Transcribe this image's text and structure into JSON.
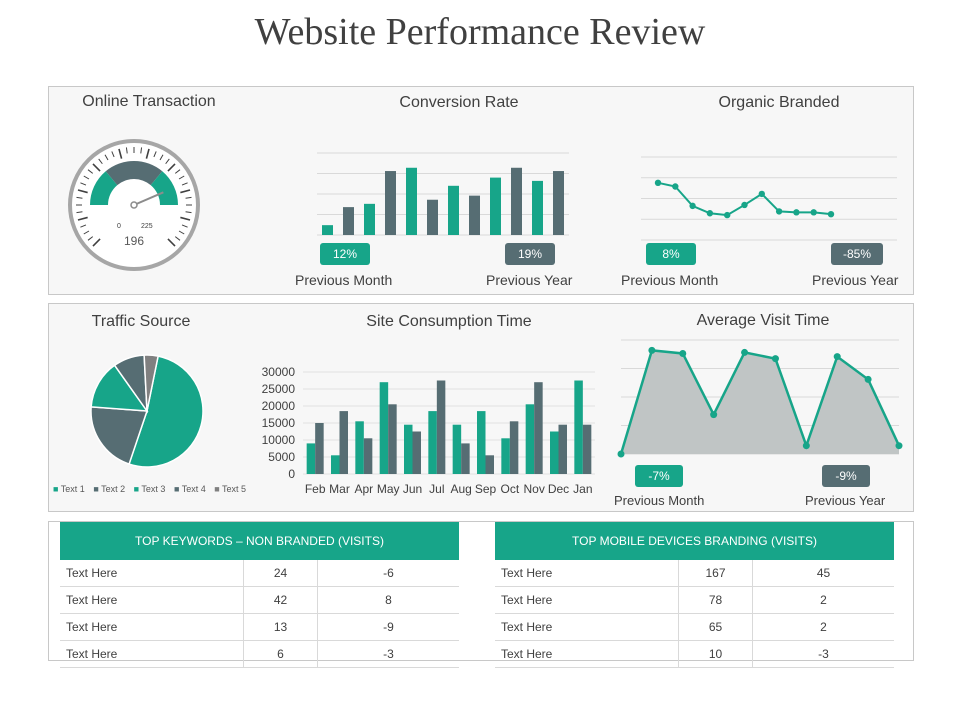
{
  "title": "Website Performance Review",
  "colors": {
    "teal": "#17a589",
    "slate": "#566d73",
    "grey": "#c0c5c5"
  },
  "online_transaction": {
    "title": "Online Transaction",
    "gauge_value": "196",
    "gauge_min": "0",
    "gauge_max": "225",
    "needle_fraction": 0.87
  },
  "conversion_rate": {
    "title": "Conversion Rate",
    "badge_left": "12%",
    "badge_right": "19%",
    "caption_left": "Previous Month",
    "caption_right": "Previous Year"
  },
  "organic_branded": {
    "title": "Organic Branded",
    "badge_left": "8%",
    "badge_right": "-85%",
    "caption_left": "Previous Month",
    "caption_right": "Previous Year"
  },
  "traffic_source": {
    "title": "Traffic Source",
    "legend": [
      "Text 1",
      "Text 2",
      "Text 3",
      "Text 4",
      "Text 5"
    ]
  },
  "site_consumption": {
    "title": "Site Consumption Time"
  },
  "average_visit": {
    "title": "Average Visit Time",
    "badge_left": "-7%",
    "badge_right": "-9%",
    "caption_left": "Previous Month",
    "caption_right": "Previous Year"
  },
  "keywords_table": {
    "header": "TOP KEYWORDS – NON BRANDED (VISITS)",
    "rows": [
      [
        "Text Here",
        "24",
        "-6"
      ],
      [
        "Text Here",
        "42",
        "8"
      ],
      [
        "Text Here",
        "13",
        "-9"
      ],
      [
        "Text Here",
        "6",
        "-3"
      ]
    ]
  },
  "mobile_table": {
    "header": "TOP MOBILE DEVICES BRANDING (VISITS)",
    "rows": [
      [
        "Text Here",
        "167",
        "45"
      ],
      [
        "Text Here",
        "78",
        "2"
      ],
      [
        "Text Here",
        "65",
        "2"
      ],
      [
        "Text Here",
        "10",
        "-3"
      ]
    ]
  },
  "chart_data": [
    {
      "id": "conversion",
      "type": "bar",
      "values": [
        12,
        34,
        38,
        78,
        82,
        43,
        60,
        48,
        70,
        82,
        66,
        78
      ],
      "colors": [
        "#17a589",
        "#566d73",
        "#17a589",
        "#566d73",
        "#17a589",
        "#566d73",
        "#17a589",
        "#566d73",
        "#17a589",
        "#566d73",
        "#17a589",
        "#566d73"
      ],
      "ylim": [
        0,
        100
      ],
      "grid": true
    },
    {
      "id": "organic",
      "type": "line",
      "values": [
        62,
        58,
        37,
        29,
        27,
        38,
        50,
        31,
        30,
        30,
        28
      ],
      "ylim": [
        0,
        90
      ],
      "grid": true
    },
    {
      "id": "traffic",
      "type": "pie",
      "categories": [
        "Text 1",
        "Text 2",
        "Text 3",
        "Text 4",
        "Text 5"
      ],
      "values": [
        52,
        21,
        14,
        9,
        4
      ],
      "colors": [
        "#17a589",
        "#566d73",
        "#17a589",
        "#566d73",
        "#808080"
      ]
    },
    {
      "id": "consumption",
      "type": "bar",
      "categories": [
        "Feb",
        "Mar",
        "Apr",
        "May",
        "Jun",
        "Jul",
        "Aug",
        "Sep",
        "Oct",
        "Nov",
        "Dec",
        "Jan"
      ],
      "series": [
        {
          "color": "#17a589",
          "values": [
            9000,
            5500,
            15500,
            27000,
            14500,
            18500,
            14500,
            18500,
            10500,
            20500,
            12500,
            27500
          ]
        },
        {
          "color": "#566d73",
          "values": [
            15000,
            18500,
            10500,
            20500,
            12500,
            27500,
            9000,
            5500,
            15500,
            27000,
            14500,
            14500
          ]
        }
      ],
      "yticks": [
        "30000",
        "25000",
        "20000",
        "15000",
        "10000",
        "5000",
        "0"
      ],
      "ylim": [
        0,
        30000
      ],
      "grid": true
    },
    {
      "id": "avgvisit",
      "type": "area",
      "values": [
        0,
        100,
        97,
        38,
        98,
        92,
        8,
        94,
        72,
        8
      ],
      "ylim": [
        0,
        110
      ],
      "grid": true
    }
  ]
}
